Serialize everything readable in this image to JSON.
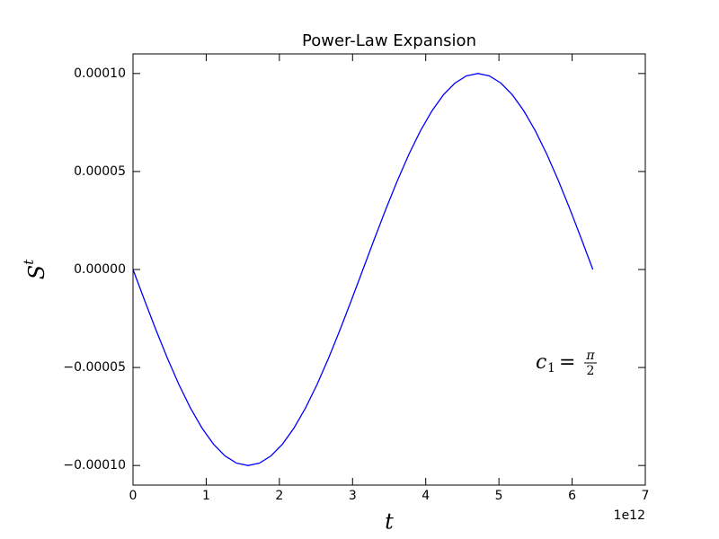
{
  "chart_data": {
    "type": "line",
    "title": "Power-Law Expansion",
    "xlabel": "t",
    "ylabel": {
      "base": "S",
      "sup": "t"
    },
    "x_offset_label": "1e12",
    "annotation": {
      "lhs": "c",
      "sub": "1",
      "eq": "=",
      "num": "π",
      "den": "2"
    },
    "color": "#0000ff",
    "x": [
      0,
      0.15708,
      0.31416,
      0.47124,
      0.62832,
      0.7854,
      0.94248,
      1.09956,
      1.25664,
      1.41372,
      1.5708,
      1.72788,
      1.88496,
      2.04204,
      2.19911,
      2.35619,
      2.51327,
      2.67035,
      2.82743,
      2.98451,
      3.14159,
      3.29867,
      3.45575,
      3.61283,
      3.76991,
      3.92699,
      4.08407,
      4.24115,
      4.39823,
      4.55531,
      4.71239,
      4.86947,
      5.02655,
      5.18363,
      5.34071,
      5.49779,
      5.65487,
      5.81195,
      5.96903,
      6.12611,
      6.28319
    ],
    "values": [
      0,
      -1.5643e-05,
      -3.0902e-05,
      -4.5399e-05,
      -5.8779e-05,
      -7.0711e-05,
      -8.0902e-05,
      -8.9101e-05,
      -9.5106e-05,
      -9.8769e-05,
      -0.0001,
      -9.8769e-05,
      -9.5106e-05,
      -8.9101e-05,
      -8.0902e-05,
      -7.0711e-05,
      -5.8779e-05,
      -4.5399e-05,
      -3.0902e-05,
      -1.5643e-05,
      0,
      1.5643e-05,
      3.0902e-05,
      4.5399e-05,
      5.8779e-05,
      7.0711e-05,
      8.0902e-05,
      8.9101e-05,
      9.5106e-05,
      9.8769e-05,
      0.0001,
      9.8769e-05,
      9.5106e-05,
      8.9101e-05,
      8.0902e-05,
      7.0711e-05,
      5.8779e-05,
      4.5399e-05,
      3.0902e-05,
      1.5643e-05,
      0
    ],
    "xlim": [
      0,
      7
    ],
    "xticks": [
      0,
      1,
      2,
      3,
      4,
      5,
      6,
      7
    ],
    "ylim": [
      -0.00011,
      0.00011
    ],
    "yticks": [
      {
        "value": 0.0001,
        "label": "0.00010"
      },
      {
        "value": 5e-05,
        "label": "0.00005"
      },
      {
        "value": 0,
        "label": "0.00000"
      },
      {
        "value": -5e-05,
        "label": "−0.00005"
      },
      {
        "value": -0.0001,
        "label": "−0.00010"
      }
    ],
    "grid": false
  }
}
